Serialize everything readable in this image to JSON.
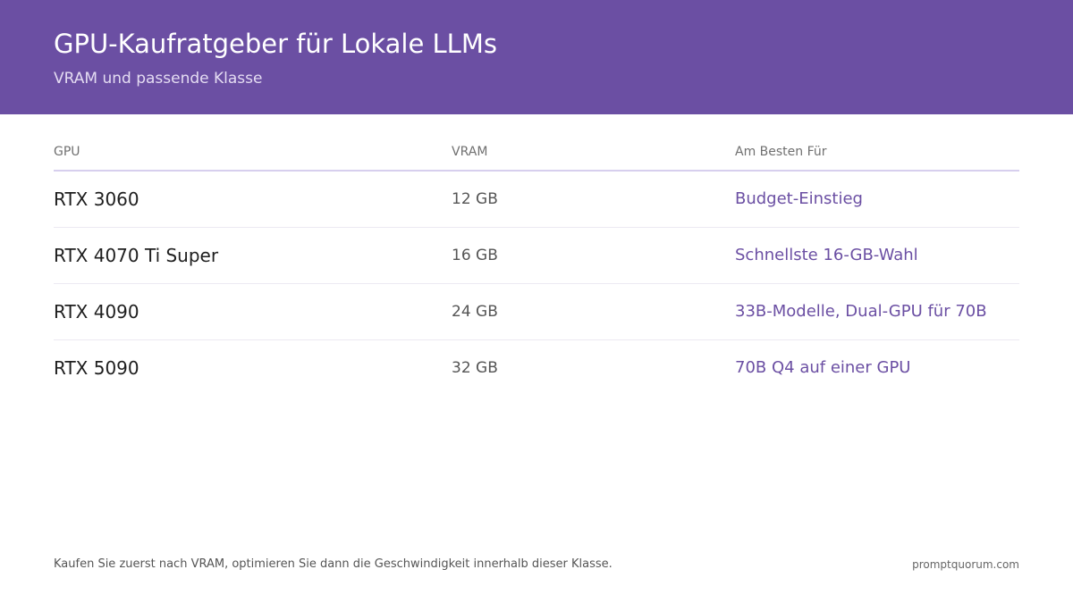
{
  "header": {
    "title": "GPU-Kaufratgeber für Lokale LLMs",
    "subtitle": "VRAM und passende Klasse"
  },
  "table": {
    "columns": [
      "GPU",
      "VRAM",
      "Am Besten Für"
    ],
    "rows": [
      {
        "gpu": "RTX 3060",
        "vram": "12 GB",
        "best_for": "Budget-Einstieg"
      },
      {
        "gpu": "RTX 4070 Ti Super",
        "vram": "16 GB",
        "best_for": "Schnellste 16-GB-Wahl"
      },
      {
        "gpu": "RTX 4090",
        "vram": "24 GB",
        "best_for": "33B-Modelle, Dual-GPU für 70B"
      },
      {
        "gpu": "RTX 5090",
        "vram": "32 GB",
        "best_for": "70B Q4 auf einer GPU"
      }
    ]
  },
  "footer": {
    "note": "Kaufen Sie zuerst nach VRAM, optimieren Sie dann die Geschwindigkeit innerhalb dieser Klasse.",
    "source": "promptquorum.com"
  },
  "colors": {
    "header_background": "#6b4fa3",
    "accent_text": "#6b4fa3",
    "header_rule": "#d7cfee",
    "row_divider": "#ece9f2"
  }
}
